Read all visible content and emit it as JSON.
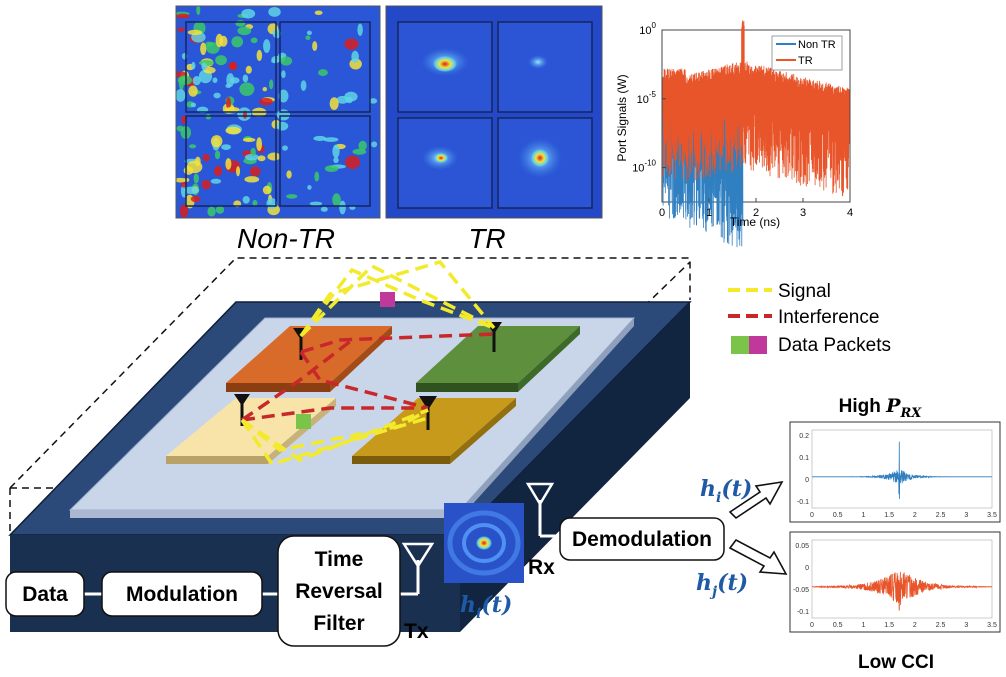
{
  "field_maps": {
    "non_tr_label": "Non-TR",
    "tr_label": "TR"
  },
  "port_plot": {
    "ylabel": "Port Signals (W)",
    "xlabel": "Time (ns)",
    "x_ticks": [
      "0",
      "1",
      "2",
      "3",
      "4"
    ],
    "y_ticks": [
      {
        "base": "10",
        "exp": "0"
      },
      {
        "base": "10",
        "exp": "-5"
      },
      {
        "base": "10",
        "exp": "-10"
      }
    ],
    "legend": [
      "Non TR",
      "TR"
    ],
    "colors": {
      "non_tr": "#2f7fc1",
      "tr": "#e8552a"
    }
  },
  "legend": {
    "signal": "Signal",
    "interference": "Interference",
    "packets": "Data Packets",
    "signal_color": "#f2ea2a",
    "interference_color": "#c8282a",
    "packet_green": "#7bc44a",
    "packet_magenta": "#c0389a"
  },
  "pipeline": {
    "data": "Data",
    "modulation": "Modulation",
    "trf_line1": "Time",
    "trf_line2": "Reversal",
    "trf_line3": "Filter",
    "tx": "Tx",
    "rx": "Rx",
    "demod": "Demodulation",
    "hi_rx_h": "h",
    "hi_rx_sub": "i",
    "hi_rx_t": "(t)"
  },
  "outputs": {
    "high_title": "High ",
    "high_p": "P",
    "high_sub": "RX",
    "low_title": "Low CCI",
    "hi_h": "h",
    "hi_sub": "i",
    "hi_t": "(t)",
    "hj_h": "h",
    "hj_sub": "j",
    "hj_t": "(t)",
    "top_plot": {
      "x_ticks": [
        "0",
        "0.5",
        "1",
        "1.5",
        "2",
        "2.5",
        "3",
        "3.5"
      ],
      "y_ticks": [
        "0.2",
        "0.1",
        "0",
        "-0.1"
      ],
      "color": "#2f7fc1"
    },
    "bottom_plot": {
      "x_ticks": [
        "0",
        "0.5",
        "1",
        "1.5",
        "2",
        "2.5",
        "3",
        "3.5"
      ],
      "y_ticks": [
        "0.05",
        "0",
        "-0.05",
        "-0.1"
      ],
      "color": "#e8552a"
    }
  },
  "colors": {
    "board_dark": "#1c3358",
    "board_top": "#2c4a78",
    "chip_plate": "#c9d6ea",
    "chip_orange": "#d96b2a",
    "chip_green": "#5d8f3c",
    "chip_yellow": "#f8e4a8",
    "chip_gold": "#c89a1c",
    "math_blue": "#1f5aa6"
  }
}
